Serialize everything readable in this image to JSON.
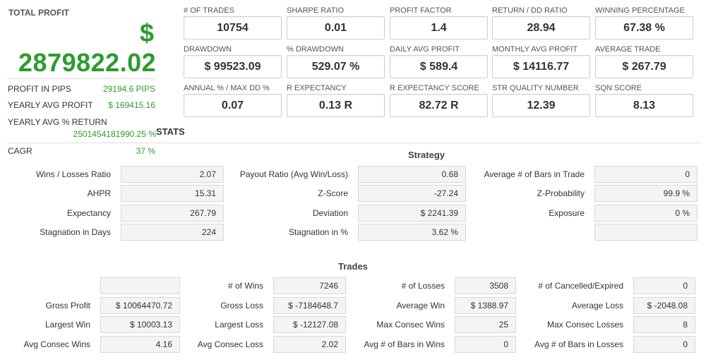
{
  "summary": {
    "title": "TOTAL PROFIT",
    "currency": "$",
    "total": "2879822.02",
    "rows": [
      {
        "label": "PROFIT IN PIPS",
        "value": "29194.6 PIPS"
      },
      {
        "label": "YEARLY AVG PROFIT",
        "value": "$ 169415.16"
      }
    ],
    "yearly_pct_label": "YEARLY AVG % RETURN",
    "yearly_pct_value": "2501454181990.25 %",
    "cagr_label": "CAGR",
    "cagr_value": "37 %",
    "stats_title": "STATS"
  },
  "metrics": [
    {
      "label": "# OF TRADES",
      "value": "10754"
    },
    {
      "label": "SHARPE RATIO",
      "value": "0.01"
    },
    {
      "label": "PROFIT FACTOR",
      "value": "1.4"
    },
    {
      "label": "RETURN / DD RATIO",
      "value": "28.94"
    },
    {
      "label": "WINNING PERCENTAGE",
      "value": "67.38 %"
    },
    {
      "label": "DRAWDOWN",
      "value": "$ 99523.09"
    },
    {
      "label": "% DRAWDOWN",
      "value": "529.07 %"
    },
    {
      "label": "DAILY AVG PROFIT",
      "value": "$ 589.4"
    },
    {
      "label": "MONTHLY AVG PROFIT",
      "value": "$ 14116.77"
    },
    {
      "label": "AVERAGE TRADE",
      "value": "$ 267.79"
    },
    {
      "label": "ANNUAL % / MAX DD %",
      "value": "0.07"
    },
    {
      "label": "R EXPECTANCY",
      "value": "0.13 R"
    },
    {
      "label": "R EXPECTANCY SCORE",
      "value": "82.72 R"
    },
    {
      "label": "STR QUALITY NUMBER",
      "value": "12.39"
    },
    {
      "label": "SQN SCORE",
      "value": "8.13"
    }
  ],
  "strategy": {
    "title": "Strategy",
    "rows": [
      [
        {
          "label": "Wins / Losses Ratio",
          "value": "2.07"
        },
        {
          "label": "Payout Ratio (Avg Win/Loss)",
          "value": "0.68"
        },
        {
          "label": "Average # of Bars in Trade",
          "value": "0"
        }
      ],
      [
        {
          "label": "AHPR",
          "value": "15.31"
        },
        {
          "label": "Z-Score",
          "value": "-27.24"
        },
        {
          "label": "Z-Probability",
          "value": "99.9 %"
        }
      ],
      [
        {
          "label": "Expectancy",
          "value": "267.79"
        },
        {
          "label": "Deviation",
          "value": "$ 2241.39"
        },
        {
          "label": "Exposure",
          "value": "0 %"
        }
      ],
      [
        {
          "label": "Stagnation in Days",
          "value": "224"
        },
        {
          "label": "Stagnation in %",
          "value": "3.62 %"
        },
        {
          "label": "",
          "value": ""
        }
      ]
    ]
  },
  "trades": {
    "title": "Trades",
    "rows": [
      [
        {
          "label": "",
          "value": ""
        },
        {
          "label": "# of Wins",
          "value": "7246"
        },
        {
          "label": "# of Losses",
          "value": "3508"
        },
        {
          "label": "# of Cancelled/Expired",
          "value": "0"
        }
      ],
      [
        {
          "label": "Gross Profit",
          "value": "$ 10064470.72"
        },
        {
          "label": "Gross Loss",
          "value": "$ -7184648.7"
        },
        {
          "label": "Average Win",
          "value": "$ 1388.97"
        },
        {
          "label": "Average Loss",
          "value": "$ -2048.08"
        }
      ],
      [
        {
          "label": "Largest Win",
          "value": "$ 10003.13"
        },
        {
          "label": "Largest Loss",
          "value": "$ -12127.08"
        },
        {
          "label": "Max Consec Wins",
          "value": "25"
        },
        {
          "label": "Max Consec Losses",
          "value": "8"
        }
      ],
      [
        {
          "label": "Avg Consec Wins",
          "value": "4.16"
        },
        {
          "label": "Avg Consec Loss",
          "value": "2.02"
        },
        {
          "label": "Avg # of Bars in Wins",
          "value": "0"
        },
        {
          "label": "Avg # of Bars in Losses",
          "value": "0"
        }
      ]
    ]
  }
}
